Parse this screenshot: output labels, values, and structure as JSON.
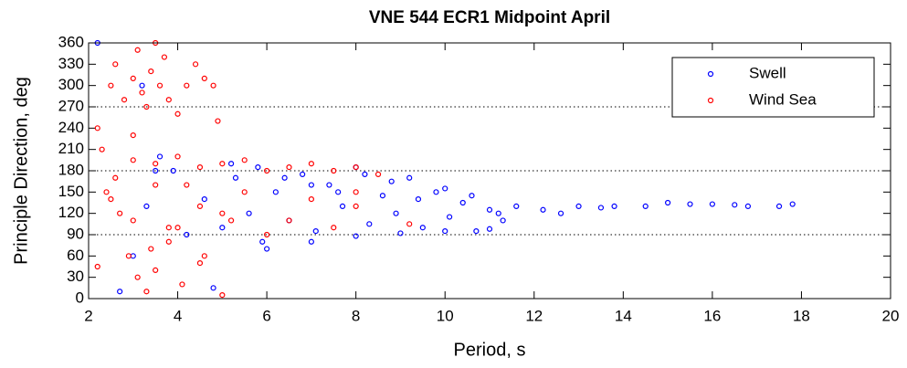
{
  "chart_data": {
    "type": "scatter",
    "title": "VNE 544 ECR1 Midpoint April",
    "xlabel": "Period, s",
    "ylabel": "Principle Direction, deg",
    "xlim": [
      2,
      20
    ],
    "xticks": [
      2,
      4,
      6,
      8,
      10,
      12,
      14,
      16,
      18,
      20
    ],
    "ylim": [
      0,
      360
    ],
    "yticks": [
      0,
      30,
      60,
      90,
      120,
      150,
      180,
      210,
      240,
      270,
      300,
      330,
      360
    ],
    "hlines": [
      90,
      180,
      270
    ],
    "legend": "northeast",
    "series": [
      {
        "name": "Swell",
        "color": "#0000ff",
        "x": [
          2.7,
          3.0,
          3.3,
          3.6,
          3.9,
          4.2,
          4.6,
          5.0,
          5.3,
          5.6,
          5.9,
          6.2,
          6.5,
          6.8,
          7.1,
          7.4,
          7.7,
          8.0,
          8.3,
          8.6,
          8.9,
          9.2,
          9.5,
          9.8,
          10.1,
          10.4,
          10.7,
          11.0,
          11.3,
          11.6,
          5.2,
          5.8,
          6.4,
          7.0,
          7.6,
          8.2,
          8.8,
          9.4,
          10.0,
          10.6,
          11.2,
          6.0,
          7.0,
          8.0,
          9.0,
          10.0,
          11.0,
          12.2,
          12.6,
          13.0,
          13.5,
          13.8,
          14.5,
          15.0,
          15.5,
          16.0,
          16.5,
          16.8,
          17.5,
          17.8,
          3.2,
          3.5,
          4.8,
          2.2
        ],
        "values": [
          10,
          60,
          130,
          200,
          180,
          90,
          140,
          100,
          170,
          120,
          80,
          150,
          110,
          175,
          95,
          160,
          130,
          185,
          105,
          145,
          120,
          170,
          100,
          150,
          115,
          135,
          95,
          125,
          110,
          130,
          190,
          185,
          170,
          160,
          150,
          175,
          165,
          140,
          155,
          145,
          120,
          70,
          80,
          88,
          92,
          95,
          98,
          125,
          120,
          130,
          128,
          130,
          130,
          135,
          133,
          133,
          132,
          130,
          130,
          133,
          300,
          180,
          15,
          360
        ]
      },
      {
        "name": "Wind Sea",
        "color": "#ff0000",
        "x": [
          2.2,
          2.3,
          2.5,
          2.6,
          2.8,
          3.0,
          3.1,
          3.2,
          3.3,
          3.4,
          3.5,
          3.6,
          3.7,
          3.8,
          4.0,
          4.2,
          4.4,
          4.6,
          4.8,
          4.9,
          2.4,
          2.7,
          2.9,
          3.1,
          3.3,
          3.5,
          3.8,
          4.1,
          4.5,
          5.0,
          3.0,
          3.5,
          4.0,
          4.5,
          5.0,
          5.5,
          6.0,
          6.5,
          7.0,
          7.5,
          8.0,
          8.5,
          2.5,
          3.0,
          3.5,
          4.0,
          4.5,
          5.0,
          5.5,
          6.0,
          6.5,
          7.0,
          7.5,
          8.0,
          9.2,
          2.2,
          2.6,
          3.0,
          3.4,
          3.8,
          4.2,
          4.6,
          5.2,
          8.0
        ],
        "values": [
          240,
          210,
          300,
          330,
          280,
          310,
          350,
          290,
          270,
          320,
          360,
          300,
          340,
          280,
          260,
          300,
          330,
          310,
          300,
          250,
          150,
          120,
          60,
          30,
          10,
          40,
          80,
          20,
          50,
          5,
          195,
          190,
          200,
          185,
          190,
          195,
          180,
          185,
          190,
          180,
          185,
          175,
          140,
          110,
          160,
          100,
          130,
          120,
          150,
          90,
          110,
          140,
          100,
          130,
          105,
          45,
          170,
          230,
          70,
          100,
          160,
          60,
          110,
          150
        ]
      }
    ]
  }
}
